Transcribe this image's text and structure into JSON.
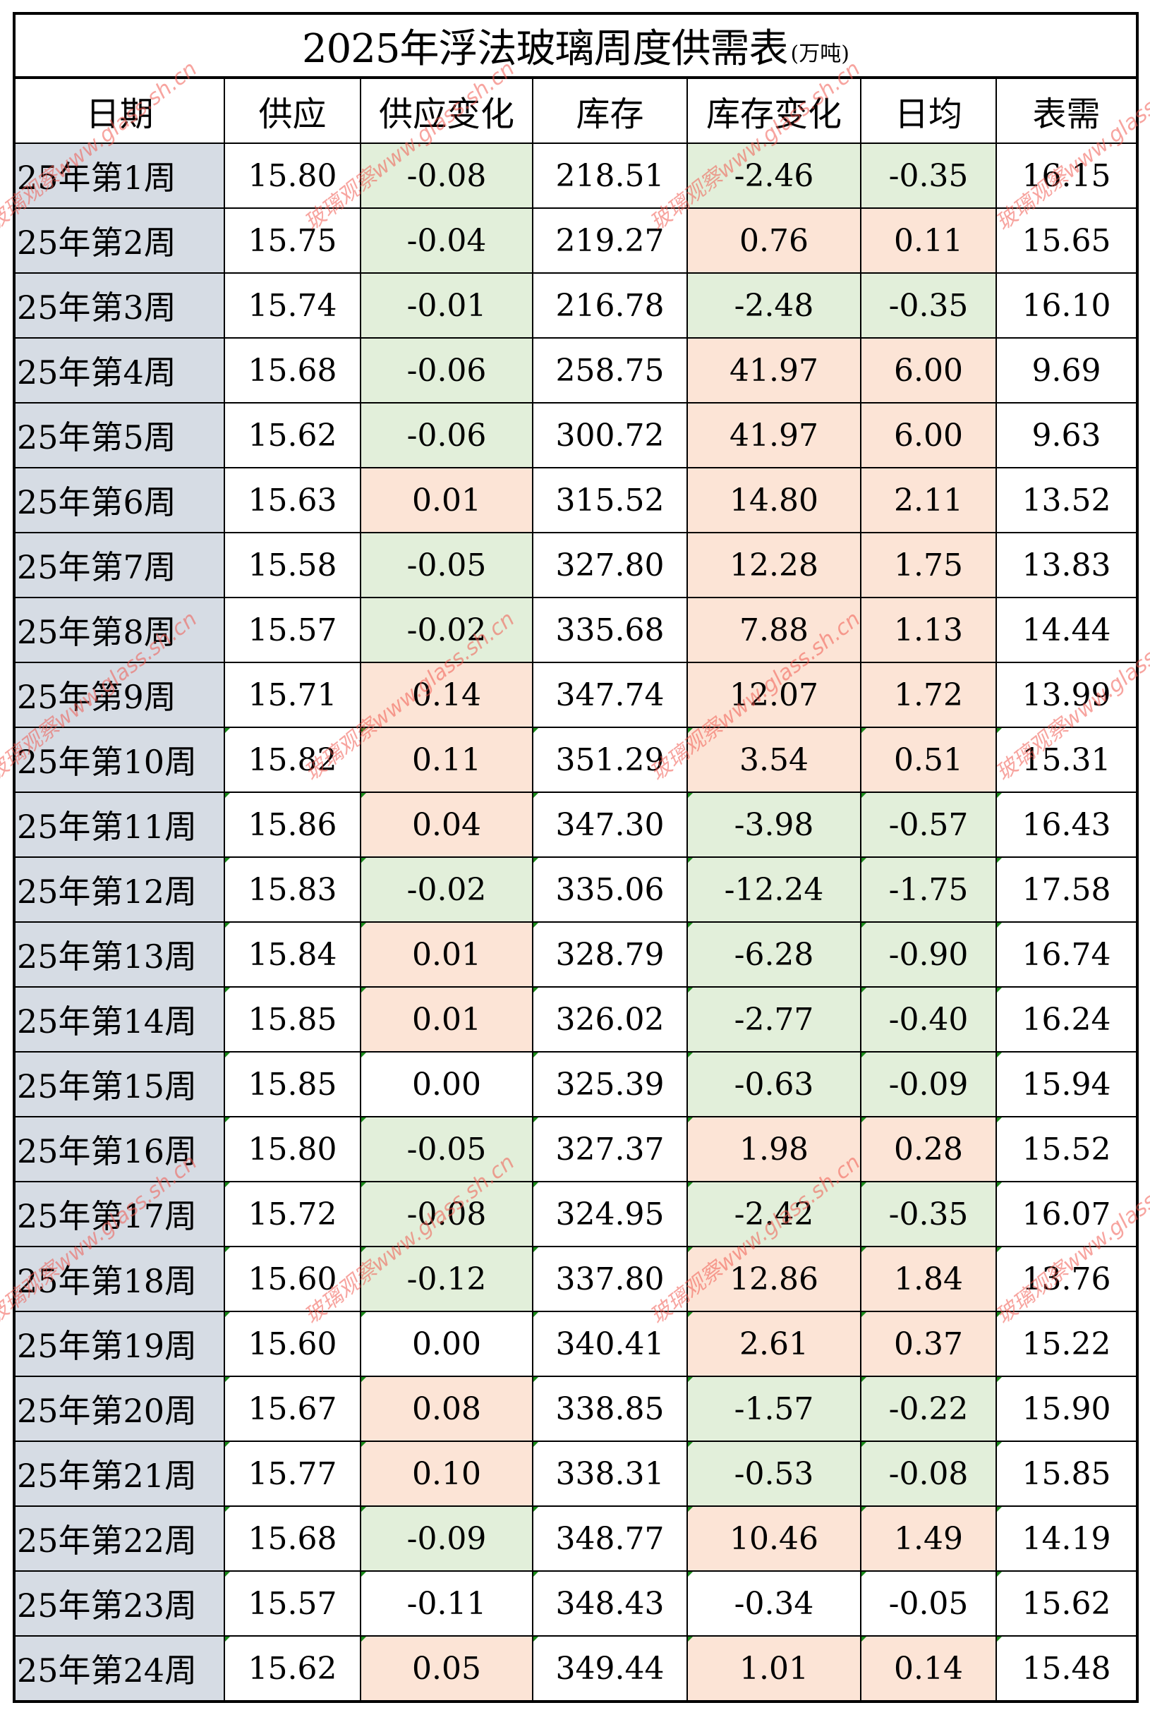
{
  "title": {
    "main": "2025年浮法玻璃周度供需表",
    "unit": "(万吨)"
  },
  "columns": [
    "日期",
    "供应",
    "供应变化",
    "库存",
    "库存变化",
    "日均",
    "表需"
  ],
  "colors": {
    "increase_fill": "#FCE4D6",
    "decrease_fill": "#E2EFDA",
    "date_fill": "#D6DCE4",
    "border": "#000000"
  },
  "watermark": "玻璃观察www.glass.sh.cn",
  "rows": [
    {
      "date": "25年第1周",
      "supply": "15.80",
      "supply_change": "-0.08",
      "inventory": "218.51",
      "inventory_change": "-2.46",
      "daily_avg": "-0.35",
      "apparent_demand": "16.15"
    },
    {
      "date": "25年第2周",
      "supply": "15.75",
      "supply_change": "-0.04",
      "inventory": "219.27",
      "inventory_change": "0.76",
      "daily_avg": "0.11",
      "apparent_demand": "15.65"
    },
    {
      "date": "25年第3周",
      "supply": "15.74",
      "supply_change": "-0.01",
      "inventory": "216.78",
      "inventory_change": "-2.48",
      "daily_avg": "-0.35",
      "apparent_demand": "16.10"
    },
    {
      "date": "25年第4周",
      "supply": "15.68",
      "supply_change": "-0.06",
      "inventory": "258.75",
      "inventory_change": "41.97",
      "daily_avg": "6.00",
      "apparent_demand": "9.69"
    },
    {
      "date": "25年第5周",
      "supply": "15.62",
      "supply_change": "-0.06",
      "inventory": "300.72",
      "inventory_change": "41.97",
      "daily_avg": "6.00",
      "apparent_demand": "9.63"
    },
    {
      "date": "25年第6周",
      "supply": "15.63",
      "supply_change": "0.01",
      "inventory": "315.52",
      "inventory_change": "14.80",
      "daily_avg": "2.11",
      "apparent_demand": "13.52"
    },
    {
      "date": "25年第7周",
      "supply": "15.58",
      "supply_change": "-0.05",
      "inventory": "327.80",
      "inventory_change": "12.28",
      "daily_avg": "1.75",
      "apparent_demand": "13.83"
    },
    {
      "date": "25年第8周",
      "supply": "15.57",
      "supply_change": "-0.02",
      "inventory": "335.68",
      "inventory_change": "7.88",
      "daily_avg": "1.13",
      "apparent_demand": "14.44"
    },
    {
      "date": "25年第9周",
      "supply": "15.71",
      "supply_change": "0.14",
      "inventory": "347.74",
      "inventory_change": "12.07",
      "daily_avg": "1.72",
      "apparent_demand": "13.99"
    },
    {
      "date": "25年第10周",
      "supply": "15.82",
      "supply_change": "0.11",
      "inventory": "351.29",
      "inventory_change": "3.54",
      "daily_avg": "0.51",
      "apparent_demand": "15.31"
    },
    {
      "date": "25年第11周",
      "supply": "15.86",
      "supply_change": "0.04",
      "inventory": "347.30",
      "inventory_change": "-3.98",
      "daily_avg": "-0.57",
      "apparent_demand": "16.43"
    },
    {
      "date": "25年第12周",
      "supply": "15.83",
      "supply_change": "-0.02",
      "inventory": "335.06",
      "inventory_change": "-12.24",
      "daily_avg": "-1.75",
      "apparent_demand": "17.58"
    },
    {
      "date": "25年第13周",
      "supply": "15.84",
      "supply_change": "0.01",
      "inventory": "328.79",
      "inventory_change": "-6.28",
      "daily_avg": "-0.90",
      "apparent_demand": "16.74"
    },
    {
      "date": "25年第14周",
      "supply": "15.85",
      "supply_change": "0.01",
      "inventory": "326.02",
      "inventory_change": "-2.77",
      "daily_avg": "-0.40",
      "apparent_demand": "16.24"
    },
    {
      "date": "25年第15周",
      "supply": "15.85",
      "supply_change": "0.00",
      "inventory": "325.39",
      "inventory_change": "-0.63",
      "daily_avg": "-0.09",
      "apparent_demand": "15.94"
    },
    {
      "date": "25年第16周",
      "supply": "15.80",
      "supply_change": "-0.05",
      "inventory": "327.37",
      "inventory_change": "1.98",
      "daily_avg": "0.28",
      "apparent_demand": "15.52"
    },
    {
      "date": "25年第17周",
      "supply": "15.72",
      "supply_change": "-0.08",
      "inventory": "324.95",
      "inventory_change": "-2.42",
      "daily_avg": "-0.35",
      "apparent_demand": "16.07"
    },
    {
      "date": "25年第18周",
      "supply": "15.60",
      "supply_change": "-0.12",
      "inventory": "337.80",
      "inventory_change": "12.86",
      "daily_avg": "1.84",
      "apparent_demand": "13.76"
    },
    {
      "date": "25年第19周",
      "supply": "15.60",
      "supply_change": "0.00",
      "inventory": "340.41",
      "inventory_change": "2.61",
      "daily_avg": "0.37",
      "apparent_demand": "15.22"
    },
    {
      "date": "25年第20周",
      "supply": "15.67",
      "supply_change": "0.08",
      "inventory": "338.85",
      "inventory_change": "-1.57",
      "daily_avg": "-0.22",
      "apparent_demand": "15.90"
    },
    {
      "date": "25年第21周",
      "supply": "15.77",
      "supply_change": "0.10",
      "inventory": "338.31",
      "inventory_change": "-0.53",
      "daily_avg": "-0.08",
      "apparent_demand": "15.85"
    },
    {
      "date": "25年第22周",
      "supply": "15.68",
      "supply_change": "-0.09",
      "inventory": "348.77",
      "inventory_change": "10.46",
      "daily_avg": "1.49",
      "apparent_demand": "14.19"
    },
    {
      "date": "25年第23周",
      "supply": "15.57",
      "supply_change": "-0.11",
      "inventory": "348.43",
      "inventory_change": "-0.34",
      "daily_avg": "-0.05",
      "apparent_demand": "15.62"
    },
    {
      "date": "25年第24周",
      "supply": "15.62",
      "supply_change": "0.05",
      "inventory": "349.44",
      "inventory_change": "1.01",
      "daily_avg": "0.14",
      "apparent_demand": "15.48"
    }
  ],
  "fills": {
    "supply_change": [
      "neg",
      "neg",
      "neg",
      "neg",
      "neg",
      "pos",
      "neg",
      "neg",
      "pos",
      "pos",
      "pos",
      "neg",
      "pos",
      "pos",
      "none",
      "neg",
      "neg",
      "neg",
      "none",
      "pos",
      "pos",
      "neg",
      "none",
      "pos"
    ],
    "inventory_change": [
      "neg",
      "pos",
      "neg",
      "pos",
      "pos",
      "pos",
      "pos",
      "pos",
      "pos",
      "pos",
      "neg",
      "neg",
      "neg",
      "neg",
      "neg",
      "pos",
      "neg",
      "pos",
      "pos",
      "neg",
      "neg",
      "pos",
      "none",
      "pos"
    ],
    "daily_avg": [
      "neg",
      "pos",
      "neg",
      "pos",
      "pos",
      "pos",
      "pos",
      "pos",
      "pos",
      "pos",
      "neg",
      "neg",
      "neg",
      "neg",
      "neg",
      "pos",
      "neg",
      "pos",
      "pos",
      "neg",
      "neg",
      "pos",
      "none",
      "pos"
    ]
  }
}
